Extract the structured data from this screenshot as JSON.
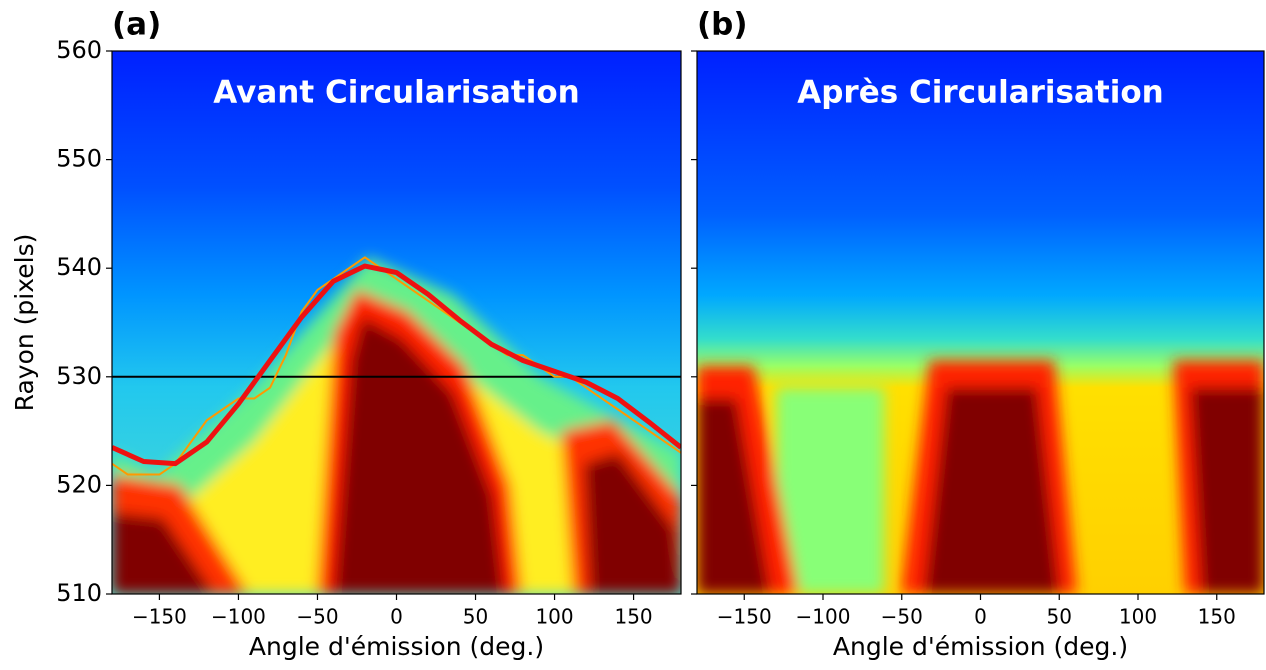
{
  "chart_data": [
    {
      "type": "line",
      "panel_label": "(a)",
      "annotation": "Avant Circularisation",
      "xlabel": "Angle d'émission (deg.)",
      "ylabel": "Rayon (pixels)",
      "xlim": [
        -180,
        180
      ],
      "ylim": [
        510,
        560
      ],
      "xticks": [
        {
          "value": -150,
          "label": "−150"
        },
        {
          "value": -100,
          "label": "−100"
        },
        {
          "value": -50,
          "label": "−50"
        },
        0,
        50,
        100,
        150
      ],
      "yticks": [
        510,
        520,
        530,
        540,
        550,
        560
      ],
      "ytick_labels": true,
      "hline": 530,
      "hline_color": "#000000",
      "series": [
        {
          "color": "#ff9900",
          "width": 2,
          "x": [
            -180,
            -170,
            -160,
            -150,
            -140,
            -130,
            -120,
            -110,
            -100,
            -90,
            -80,
            -70,
            -60,
            -50,
            -40,
            -30,
            -20,
            -10,
            0,
            10,
            20,
            30,
            40,
            50,
            60,
            70,
            80,
            90,
            100,
            110,
            120,
            130,
            140,
            150,
            160,
            170,
            180
          ],
          "values": [
            522,
            521,
            521,
            521,
            522,
            524,
            526,
            527,
            528,
            528,
            529,
            532,
            536,
            538,
            539,
            540,
            541,
            540,
            539,
            538,
            537,
            536,
            535,
            534,
            533,
            532,
            532,
            531,
            530,
            530,
            529,
            528,
            527,
            526,
            525,
            524,
            523
          ]
        },
        {
          "color": "#ee1111",
          "width": 5,
          "x": [
            -180,
            -160,
            -140,
            -120,
            -100,
            -80,
            -60,
            -40,
            -20,
            0,
            20,
            40,
            60,
            80,
            100,
            120,
            140,
            160,
            180
          ],
          "values": [
            523.5,
            522.2,
            522.0,
            524.0,
            527.5,
            531.5,
            535.5,
            538.8,
            540.2,
            539.6,
            537.6,
            535.2,
            533.0,
            531.5,
            530.5,
            529.5,
            528.0,
            525.8,
            523.5
          ]
        }
      ]
    },
    {
      "type": "line",
      "panel_label": "(b)",
      "annotation": "Après Circularisation",
      "xlabel": "Angle d'émission (deg.)",
      "xlim": [
        -180,
        180
      ],
      "ylim": [
        510,
        560
      ],
      "xticks": [
        {
          "value": -150,
          "label": "−150"
        },
        {
          "value": -100,
          "label": "−100"
        },
        {
          "value": -50,
          "label": "−50"
        },
        0,
        50,
        100,
        150
      ],
      "yticks": [
        510,
        520,
        530,
        540,
        550,
        560
      ],
      "ytick_labels": false,
      "series": []
    }
  ]
}
